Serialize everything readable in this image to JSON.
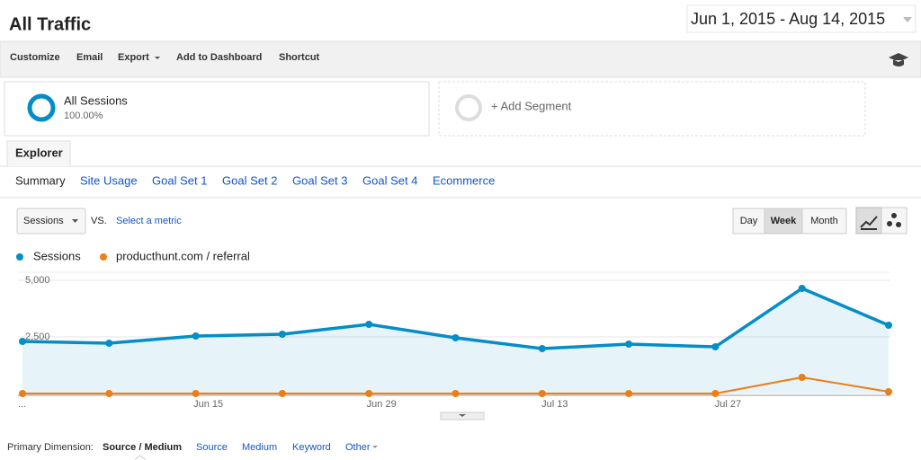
{
  "header": {
    "title": "All Traffic",
    "date_range": "Jun 1, 2015 - Aug 14, 2015"
  },
  "toolbar": [
    "Customize",
    "Email",
    "Export",
    "Add to Dashboard",
    "Shortcut"
  ],
  "segments": {
    "active": {
      "name": "All Sessions",
      "percent": "100.00%"
    },
    "add": "+ Add Segment"
  },
  "tab": "Explorer",
  "subtabs": [
    "Summary",
    "Site Usage",
    "Goal Set 1",
    "Goal Set 2",
    "Goal Set 3",
    "Goal Set 4",
    "Ecommerce"
  ],
  "controls": {
    "metric": "Sessions",
    "vs": "VS.",
    "select_metric": "Select a metric",
    "periods": [
      "Day",
      "Week",
      "Month"
    ]
  },
  "chart_data": {
    "type": "line",
    "categories": [
      "...",
      null,
      "Jun 15",
      null,
      "Jun 29",
      null,
      "Jul 13",
      null,
      "Jul 27",
      null,
      null
    ],
    "series": [
      {
        "name": "Sessions",
        "color": "#058dc7",
        "fill": true,
        "values": [
          2302,
          2222,
          2540,
          2619,
          3056,
          2460,
          1984,
          2183,
          2063,
          4643,
          3016
        ]
      },
      {
        "name": "producthunt.com / referral",
        "color": "#ed7e17",
        "values": [
          0,
          0,
          0,
          0,
          0,
          0,
          0,
          0,
          0,
          714,
          79
        ]
      }
    ],
    "ylim": [
      0,
      5000
    ],
    "yticks": [
      {
        "value": 2500,
        "label": "2,500"
      },
      {
        "value": 5000,
        "label": "5,000"
      }
    ],
    "grid": true
  },
  "primary_dimension": {
    "label": "Primary Dimension:",
    "options": [
      "Source / Medium",
      "Source",
      "Medium",
      "Keyword",
      "Other"
    ]
  }
}
